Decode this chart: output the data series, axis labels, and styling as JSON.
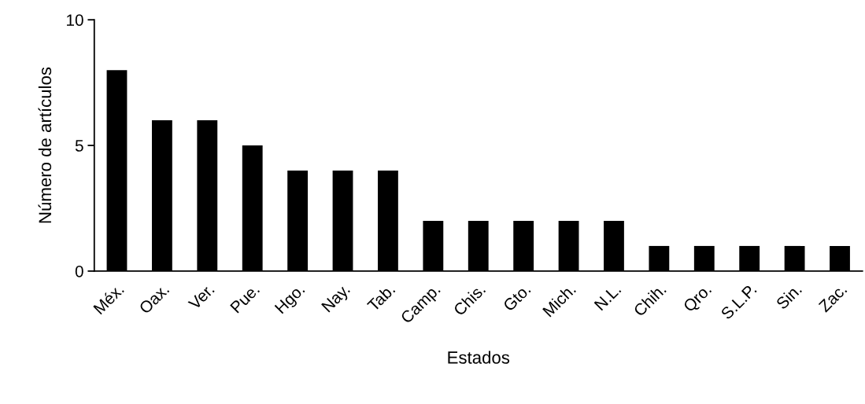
{
  "chart_data": {
    "type": "bar",
    "xlabel": "Estados",
    "ylabel": "Número de artículos",
    "categories": [
      "Méx.",
      "Oax.",
      "Ver.",
      "Pue.",
      "Hgo.",
      "Nay.",
      "Tab.",
      "Camp.",
      "Chis.",
      "Gto.",
      "Mich.",
      "N.L.",
      "Chih.",
      "Qro.",
      "S.L.P.",
      "Sin.",
      "Zac."
    ],
    "values": [
      8,
      6,
      6,
      5,
      4,
      4,
      4,
      2,
      2,
      2,
      2,
      2,
      1,
      1,
      1,
      1,
      1
    ],
    "color": "#000000",
    "ylim": [
      0,
      10
    ],
    "yticks": [
      0,
      5,
      10
    ],
    "grid": false,
    "legend": false
  }
}
